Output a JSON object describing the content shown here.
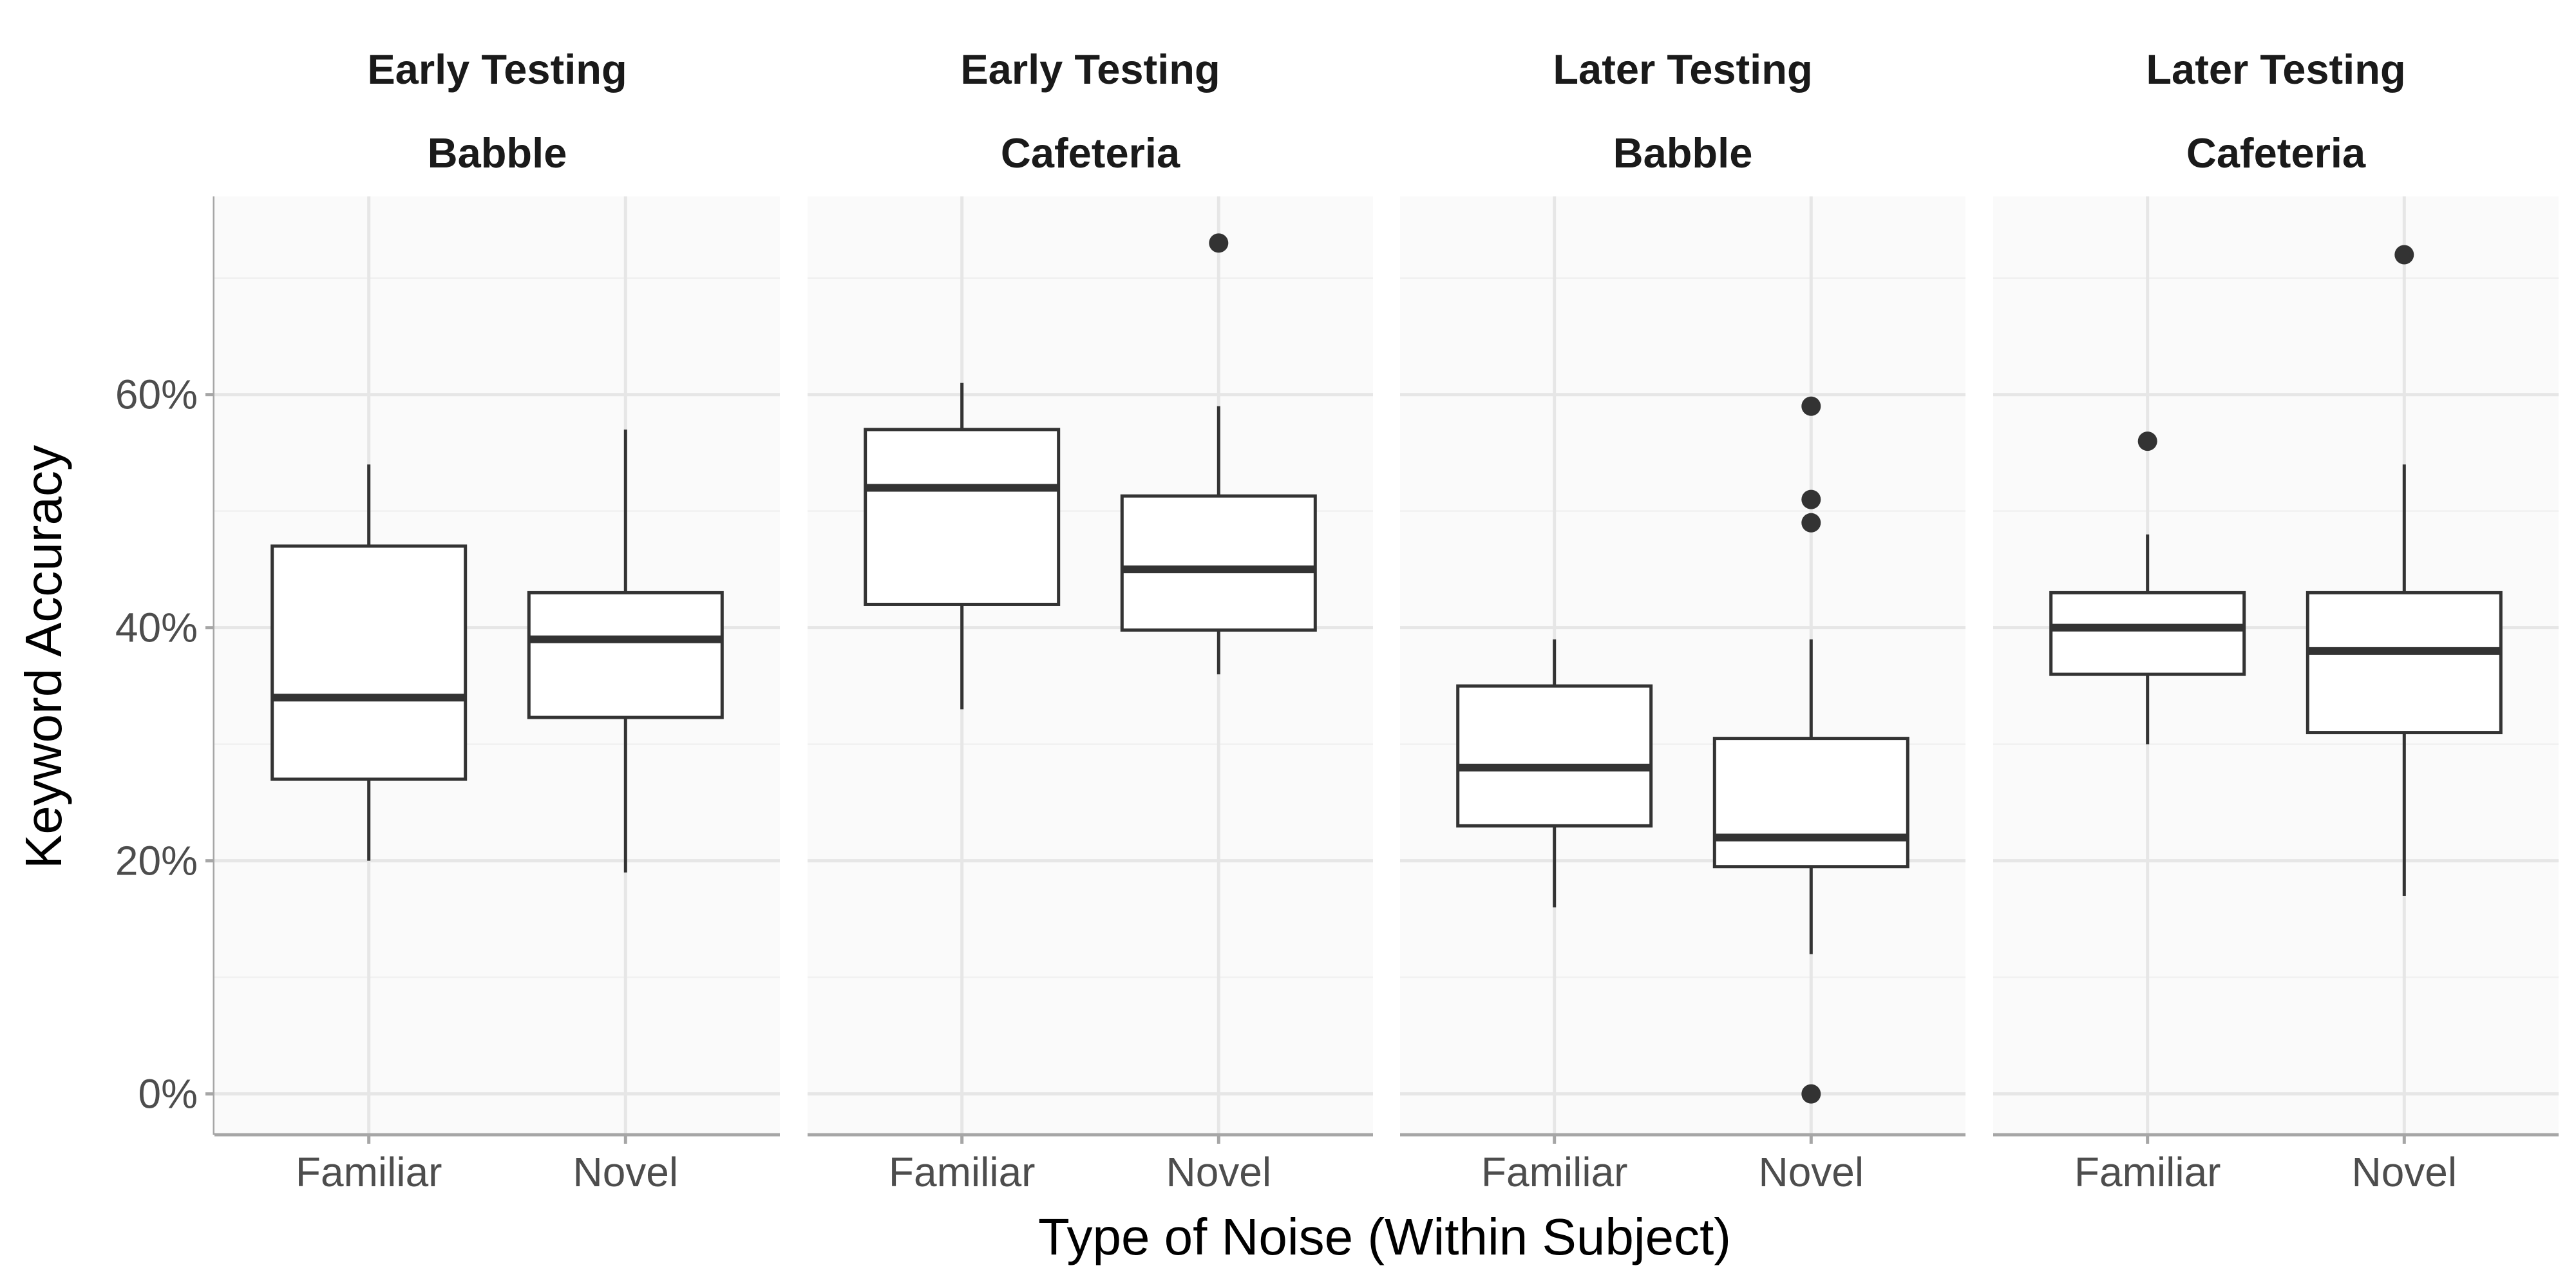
{
  "chart_data": {
    "type": "boxplot",
    "xlabel": "Type of Noise (Within Subject)",
    "ylabel": "Keyword Accuracy",
    "ylim": [
      -0.035,
      0.77
    ],
    "y_ticks": [
      0,
      0.2,
      0.4,
      0.6
    ],
    "y_tick_labels": [
      "0%",
      "20%",
      "40%",
      "60%"
    ],
    "categories": [
      "Familiar",
      "Novel"
    ],
    "grid": true,
    "panels": [
      {
        "strip": [
          "Early Testing",
          "Babble"
        ],
        "boxes": [
          {
            "category": "Familiar",
            "whisker_low": 0.2,
            "q1": 0.27,
            "median": 0.34,
            "q3": 0.47,
            "whisker_high": 0.54,
            "outliers": []
          },
          {
            "category": "Novel",
            "whisker_low": 0.19,
            "q1": 0.323,
            "median": 0.39,
            "q3": 0.43,
            "whisker_high": 0.57,
            "outliers": []
          }
        ]
      },
      {
        "strip": [
          "Early Testing",
          "Cafeteria"
        ],
        "boxes": [
          {
            "category": "Familiar",
            "whisker_low": 0.33,
            "q1": 0.42,
            "median": 0.52,
            "q3": 0.57,
            "whisker_high": 0.61,
            "outliers": []
          },
          {
            "category": "Novel",
            "whisker_low": 0.36,
            "q1": 0.398,
            "median": 0.45,
            "q3": 0.513,
            "whisker_high": 0.59,
            "outliers": [
              0.73
            ]
          }
        ]
      },
      {
        "strip": [
          "Later Testing",
          "Babble"
        ],
        "boxes": [
          {
            "category": "Familiar",
            "whisker_low": 0.16,
            "q1": 0.23,
            "median": 0.28,
            "q3": 0.35,
            "whisker_high": 0.39,
            "outliers": []
          },
          {
            "category": "Novel",
            "whisker_low": 0.12,
            "q1": 0.195,
            "median": 0.22,
            "q3": 0.305,
            "whisker_high": 0.39,
            "outliers": [
              0.59,
              0.51,
              0.49,
              0.0
            ]
          }
        ]
      },
      {
        "strip": [
          "Later Testing",
          "Cafeteria"
        ],
        "boxes": [
          {
            "category": "Familiar",
            "whisker_low": 0.3,
            "q1": 0.36,
            "median": 0.4,
            "q3": 0.43,
            "whisker_high": 0.48,
            "outliers": [
              0.56
            ]
          },
          {
            "category": "Novel",
            "whisker_low": 0.17,
            "q1": 0.31,
            "median": 0.38,
            "q3": 0.43,
            "whisker_high": 0.54,
            "outliers": [
              0.72
            ]
          }
        ]
      }
    ]
  },
  "colors": {
    "panel_background": "#fafafa",
    "grid_major": "#e6e6e6",
    "grid_minor": "#f0f0f0",
    "axis_line": "#a6a6a6",
    "box_line": "#333333",
    "box_fill": "#ffffff"
  }
}
